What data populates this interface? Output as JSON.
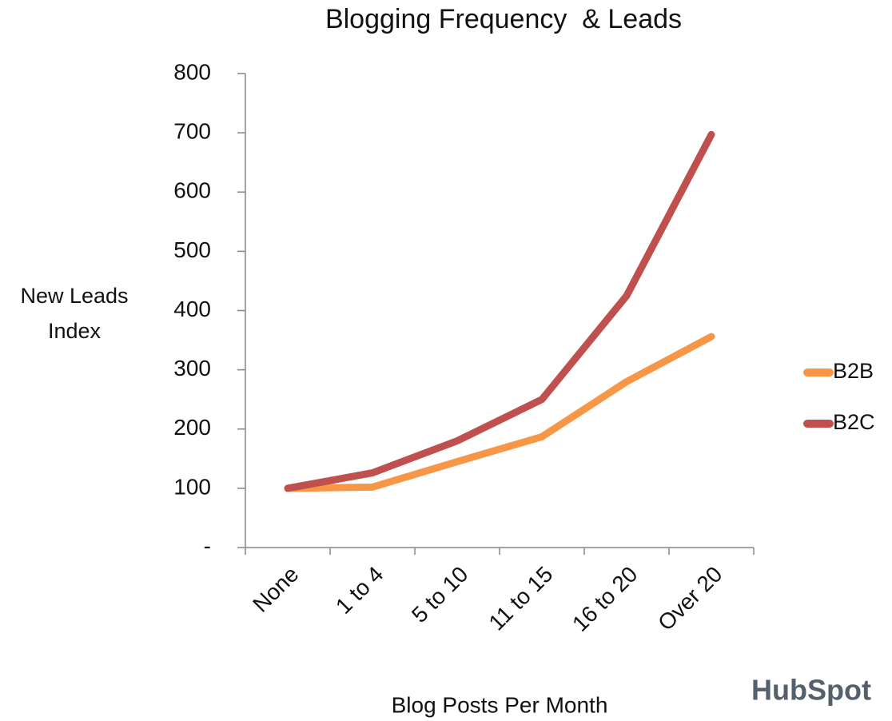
{
  "chart_data": {
    "type": "line",
    "title": "Blogging Frequency  & Leads",
    "ylabel": "New Leads Index",
    "xlabel": "Blog Posts Per Month",
    "logo": "HubSpot",
    "categories": [
      "None",
      "1 to 4",
      "5 to 10",
      "11 to 15",
      "16 to 20",
      "Over 20"
    ],
    "series": [
      {
        "name": "B2B",
        "color": "#f79646",
        "values": [
          100,
          102,
          145,
          187,
          280,
          356
        ]
      },
      {
        "name": "B2C",
        "color": "#c0504d",
        "values": [
          100,
          126,
          180,
          250,
          425,
          697
        ]
      }
    ],
    "ylim": [
      0,
      800
    ],
    "yticks": [
      {
        "value": 0,
        "label": "-"
      },
      100,
      200,
      300,
      400,
      500,
      600,
      700,
      800
    ],
    "grid": false,
    "legend": "right"
  }
}
